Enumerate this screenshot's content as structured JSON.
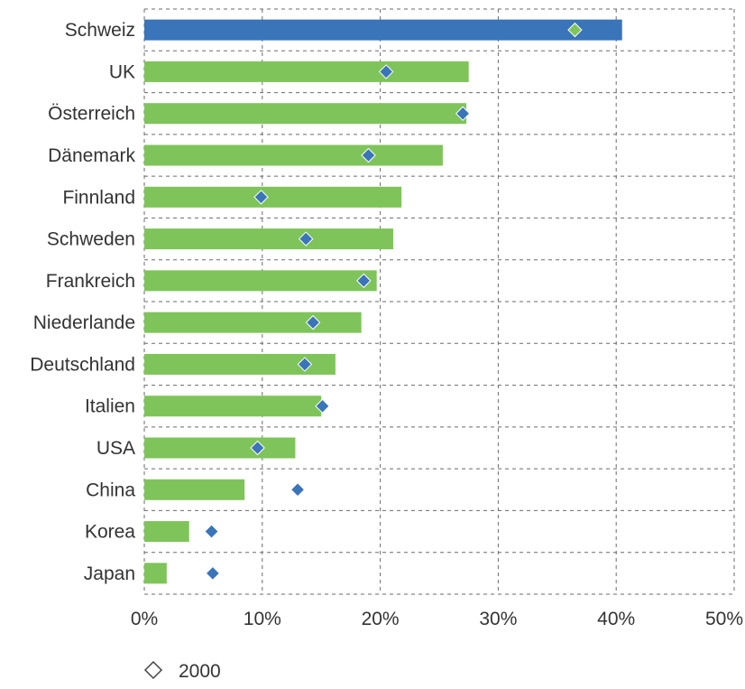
{
  "chart_data": {
    "type": "bar",
    "orientation": "horizontal",
    "categories": [
      "Schweiz",
      "UK",
      "Österreich",
      "Dänemark",
      "Finnland",
      "Schweden",
      "Frankreich",
      "Niederlande",
      "Deutschland",
      "Italien",
      "USA",
      "China",
      "Korea",
      "Japan"
    ],
    "series": [
      {
        "values": [
          40.5,
          27.5,
          27.3,
          25.3,
          21.8,
          21.1,
          19.7,
          18.4,
          16.2,
          15.0,
          12.8,
          8.5,
          3.8,
          1.9
        ]
      },
      {
        "name": "2000",
        "marker": "diamond",
        "values": [
          36.5,
          20.5,
          27.0,
          19.0,
          9.9,
          13.7,
          18.6,
          14.3,
          13.6,
          15.1,
          9.6,
          13.0,
          5.7,
          5.8
        ]
      }
    ],
    "xlim": [
      0,
      50
    ],
    "xticks": [
      "0%",
      "10%",
      "20%",
      "30%",
      "40%",
      "50%"
    ],
    "grid": true,
    "grid_style": "dashed",
    "legend": {
      "entries": [
        "2000"
      ],
      "placement": "bottom-left"
    },
    "colors": {
      "highlight_bar": "#3a74b9",
      "bar": "#7fc45a",
      "marker": "#3a74b9",
      "highlight_marker": "#7fc45a",
      "grid": "#6b6b6b"
    },
    "highlight_index": 0
  }
}
